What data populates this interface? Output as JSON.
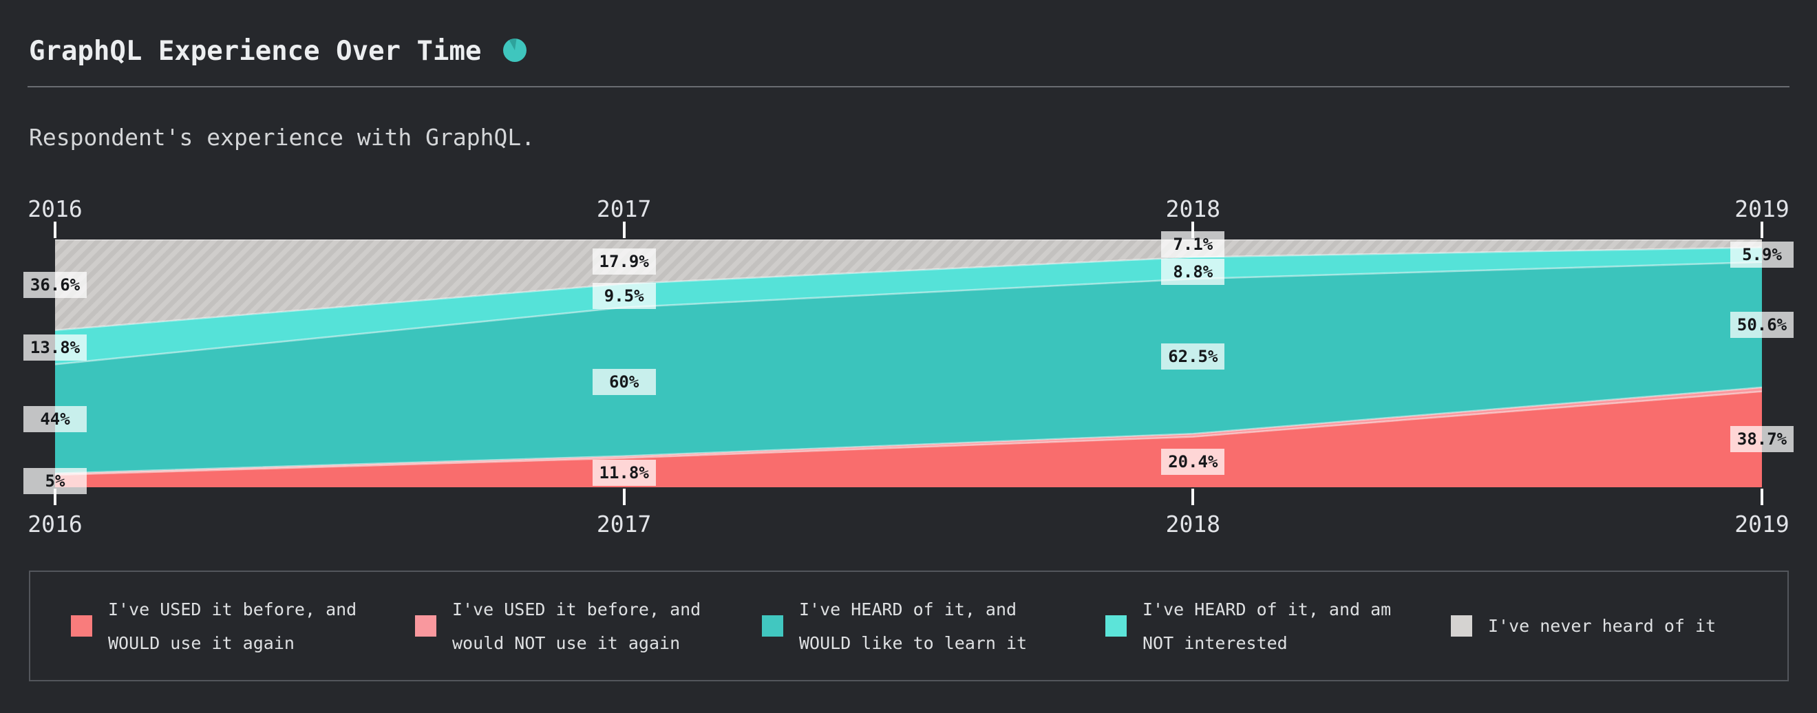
{
  "page": {
    "title": "GraphQL Experience Over Time",
    "subtitle": "Respondent's experience with GraphQL."
  },
  "colors": {
    "background": "#26282c",
    "accent_teal": "#3fc6be",
    "chip_text": "#16181b",
    "axis_tick": "#fafafa",
    "legend_border": "#53565c"
  },
  "chart_data": {
    "type": "area",
    "stacked": true,
    "unit": "%",
    "ylim": [
      0,
      100
    ],
    "grid": false,
    "legend_position": "bottom",
    "categories": [
      "2016",
      "2017",
      "2018",
      "2019"
    ],
    "series": [
      {
        "id": "would_use",
        "name": "I've USED it before, and WOULD use it again",
        "color": "#f96d6d",
        "values": [
          5,
          11.8,
          20.4,
          38.7
        ]
      },
      {
        "id": "not_use",
        "name": "I've USED it before, and would NOT use it again",
        "color": "#f9989e",
        "values": [
          0.6,
          0.8,
          1.2,
          1.6
        ]
      },
      {
        "id": "learn",
        "name": "I've HEARD of it, and WOULD like to learn it",
        "color": "#3bc4bc",
        "values": [
          44,
          60,
          62.5,
          50.6
        ]
      },
      {
        "id": "not_interested",
        "name": "I've HEARD of it, and am NOT interested",
        "color": "#55e2d8",
        "values": [
          13.8,
          9.5,
          8.8,
          5.9
        ]
      },
      {
        "id": "never_heard",
        "name": "I've never heard of it",
        "color": "#cfcdcb",
        "pattern": "diagonal-hatch",
        "values": [
          36.6,
          17.9,
          7.1,
          3.2
        ]
      }
    ],
    "value_labels": [
      {
        "year": "2016",
        "series": "never_heard",
        "text": "36.6%"
      },
      {
        "year": "2016",
        "series": "not_interested",
        "text": "13.8%"
      },
      {
        "year": "2016",
        "series": "learn",
        "text": "44%"
      },
      {
        "year": "2016",
        "series": "would_use",
        "text": "5%"
      },
      {
        "year": "2017",
        "series": "never_heard",
        "text": "17.9%"
      },
      {
        "year": "2017",
        "series": "not_interested",
        "text": "9.5%"
      },
      {
        "year": "2017",
        "series": "learn",
        "text": "60%"
      },
      {
        "year": "2017",
        "series": "would_use",
        "text": "11.8%"
      },
      {
        "year": "2018",
        "series": "never_heard",
        "text": "7.1%"
      },
      {
        "year": "2018",
        "series": "not_interested",
        "text": "8.8%"
      },
      {
        "year": "2018",
        "series": "learn",
        "text": "62.5%"
      },
      {
        "year": "2018",
        "series": "would_use",
        "text": "20.4%"
      },
      {
        "year": "2019",
        "series": "not_interested",
        "text": "5.9%"
      },
      {
        "year": "2019",
        "series": "learn",
        "text": "50.6%"
      },
      {
        "year": "2019",
        "series": "would_use",
        "text": "38.7%"
      }
    ]
  },
  "legend": {
    "items": [
      {
        "label_lines": [
          "I've USED it before, and",
          "WOULD use it again"
        ],
        "color": "#f97c7c"
      },
      {
        "label_lines": [
          "I've USED it before, and",
          "would NOT use it again"
        ],
        "color": "#f9989e"
      },
      {
        "label_lines": [
          "I've HEARD of it, and",
          "WOULD like to learn it"
        ],
        "color": "#41c7c0"
      },
      {
        "label_lines": [
          "I've HEARD of it, and am",
          "NOT interested"
        ],
        "color": "#5ce4d9"
      },
      {
        "label_lines": [
          "I've never heard of it"
        ],
        "color": "#d5d3d1"
      }
    ]
  }
}
